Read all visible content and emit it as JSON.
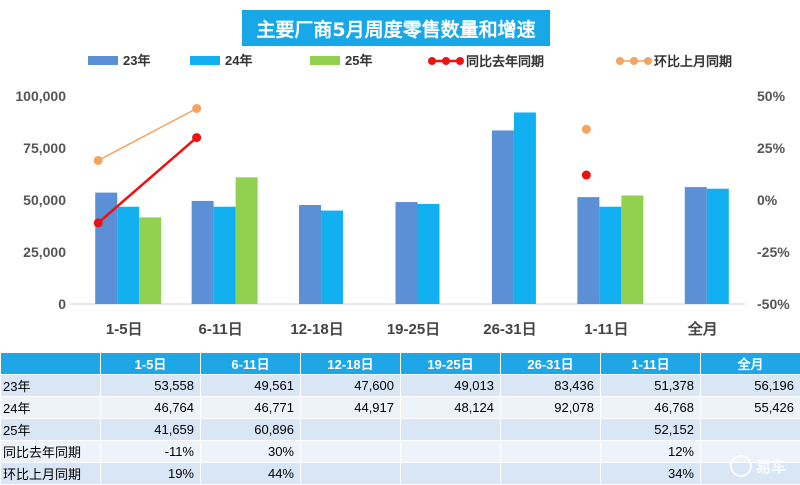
{
  "chart_data": {
    "type": "bar",
    "title": "主要厂商5月周度零售数量和增速",
    "categories": [
      "1-5日",
      "6-11日",
      "12-18日",
      "19-25日",
      "26-31日",
      "1-11日",
      "全月"
    ],
    "series": [
      {
        "name": "23年",
        "color": "#5b8fd6",
        "values": [
          53558,
          49561,
          47600,
          49013,
          83436,
          51378,
          56196
        ]
      },
      {
        "name": "24年",
        "color": "#12b0f0",
        "values": [
          46764,
          46771,
          44917,
          48124,
          92078,
          46768,
          55426
        ]
      },
      {
        "name": "25年",
        "color": "#92d050",
        "values": [
          41659,
          60896,
          null,
          null,
          null,
          52152,
          null
        ]
      }
    ],
    "line_series": [
      {
        "name": "同比去年同期",
        "color": "#ee1111",
        "values": [
          -11,
          30,
          null,
          null,
          null,
          12,
          null
        ]
      },
      {
        "name": "环比上月同期",
        "color": "#f4a460",
        "values": [
          19,
          44,
          null,
          null,
          null,
          34,
          null
        ]
      }
    ],
    "y_left": {
      "min": 0,
      "max": 100000,
      "ticks": [
        "0",
        "25,000",
        "50,000",
        "75,000",
        "100,000"
      ]
    },
    "y_right": {
      "min": -50,
      "max": 50,
      "ticks": [
        "-50%",
        "-25%",
        "0%",
        "25%",
        "50%"
      ]
    },
    "legend_position": "top",
    "grid": false
  },
  "table": {
    "header": [
      "",
      "1-5日",
      "6-11日",
      "12-18日",
      "19-25日",
      "26-31日",
      "1-11日",
      "全月"
    ],
    "rows": [
      [
        "23年",
        "53,558",
        "49,561",
        "47,600",
        "49,013",
        "83,436",
        "51,378",
        "56,196"
      ],
      [
        "24年",
        "46,764",
        "46,771",
        "44,917",
        "48,124",
        "92,078",
        "46,768",
        "55,426"
      ],
      [
        "25年",
        "41,659",
        "60,896",
        "",
        "",
        "",
        "52,152",
        ""
      ],
      [
        "同比去年同期",
        "-11%",
        "30%",
        "",
        "",
        "",
        "12%",
        ""
      ],
      [
        "环比上月同期",
        "19%",
        "44%",
        "",
        "",
        "",
        "34%",
        ""
      ]
    ]
  },
  "watermark": "易车"
}
